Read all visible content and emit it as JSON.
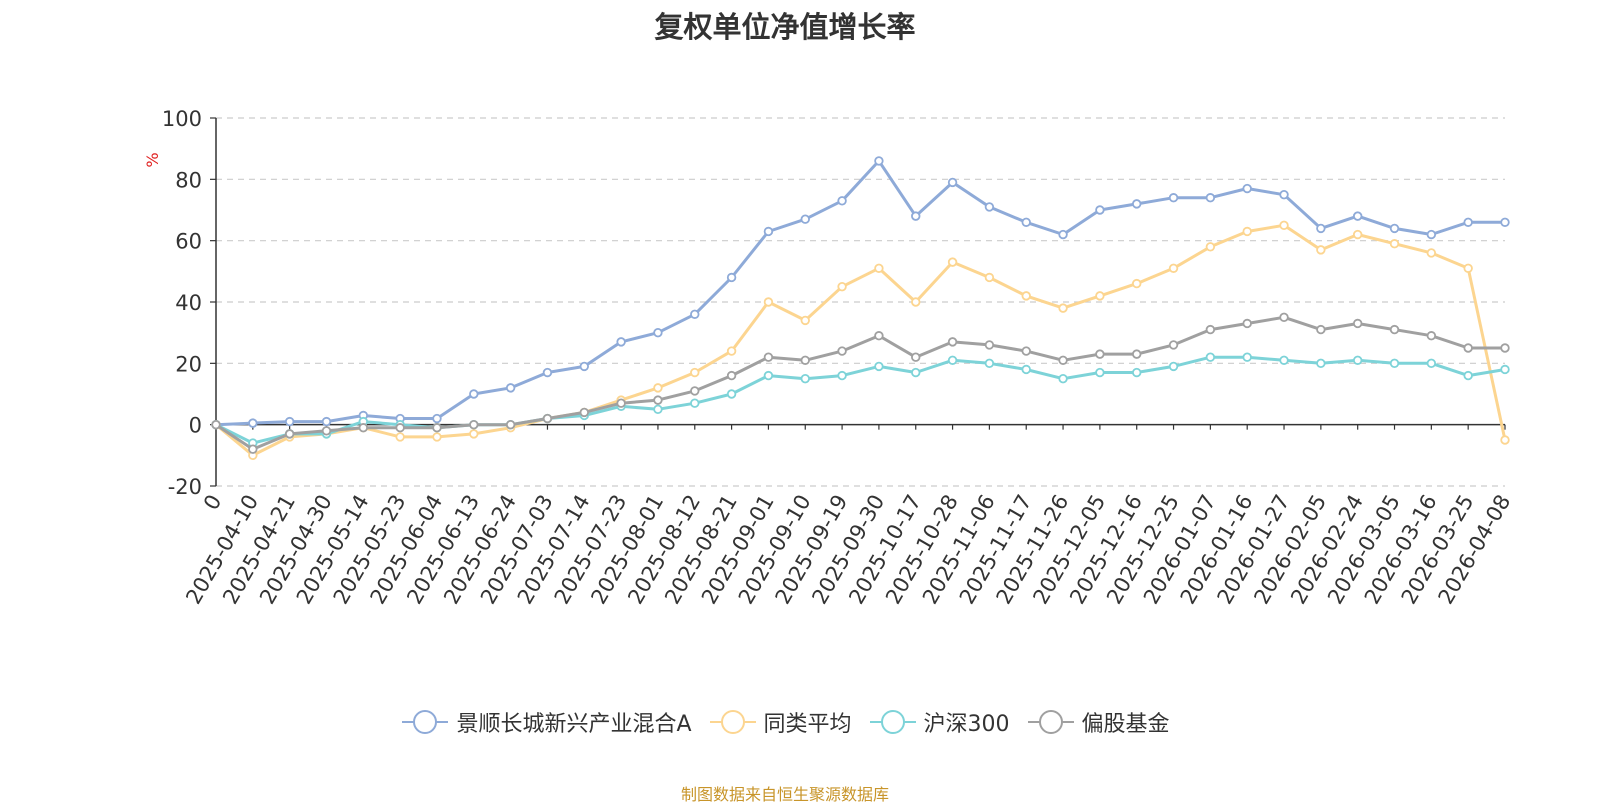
{
  "chart_data": {
    "type": "line",
    "title": "复权单位净值增长率",
    "ylabel": "%",
    "ylim": [
      -20,
      100
    ],
    "yticks": [
      -20,
      0,
      20,
      40,
      60,
      80,
      100
    ],
    "grid": true,
    "legend_position": "bottom",
    "categories": [
      "0",
      "2025-04-10",
      "2025-04-21",
      "2025-04-30",
      "2025-05-14",
      "2025-05-23",
      "2025-06-04",
      "2025-06-13",
      "2025-06-24",
      "2025-07-03",
      "2025-07-14",
      "2025-07-23",
      "2025-08-01",
      "2025-08-12",
      "2025-08-21",
      "2025-09-01",
      "2025-09-10",
      "2025-09-19",
      "2025-09-30",
      "2025-10-17",
      "2025-10-28",
      "2025-11-06",
      "2025-11-17",
      "2025-11-26",
      "2025-12-05",
      "2025-12-16",
      "2025-12-25",
      "2026-01-07",
      "2026-01-16",
      "2026-01-27",
      "2026-02-05",
      "2026-02-24",
      "2026-03-05",
      "2026-03-16",
      "2026-03-25",
      "2026-04-08"
    ],
    "series": [
      {
        "name": "景顺长城新兴产业混合A",
        "color": "#8eaad8",
        "values": [
          0,
          0.5,
          1,
          1,
          3,
          2,
          2,
          10,
          12,
          17,
          19,
          27,
          30,
          36,
          48,
          63,
          67,
          73,
          86,
          68,
          79,
          71,
          66,
          62,
          70,
          72,
          74,
          74,
          77,
          75,
          64,
          68,
          64,
          62,
          66,
          66
        ]
      },
      {
        "name": "同类平均",
        "color": "#fcd590",
        "values": [
          0,
          -10,
          -4,
          -3,
          -1,
          -4,
          -4,
          -3,
          -1,
          2,
          4,
          8,
          12,
          17,
          24,
          40,
          34,
          45,
          51,
          40,
          53,
          48,
          42,
          38,
          42,
          46,
          51,
          58,
          63,
          65,
          57,
          62,
          59,
          56,
          51,
          -5
        ]
      },
      {
        "name": "沪深300",
        "color": "#7dd3d8",
        "values": [
          0,
          -6,
          -3,
          -3,
          1,
          0,
          -1,
          0,
          0,
          2,
          3,
          6,
          5,
          7,
          10,
          16,
          15,
          16,
          19,
          17,
          21,
          20,
          18,
          15,
          17,
          17,
          19,
          22,
          22,
          21,
          20,
          21,
          20,
          20,
          16,
          18
        ]
      },
      {
        "name": "偏股基金",
        "color": "#a0a0a0",
        "values": [
          0,
          -8,
          -3,
          -2,
          -1,
          -1,
          -1,
          0,
          0,
          2,
          4,
          7,
          8,
          11,
          16,
          22,
          21,
          24,
          29,
          22,
          27,
          26,
          24,
          21,
          23,
          23,
          26,
          31,
          33,
          35,
          31,
          33,
          31,
          29,
          25,
          25
        ]
      }
    ]
  },
  "source_note": "制图数据来自恒生聚源数据库"
}
